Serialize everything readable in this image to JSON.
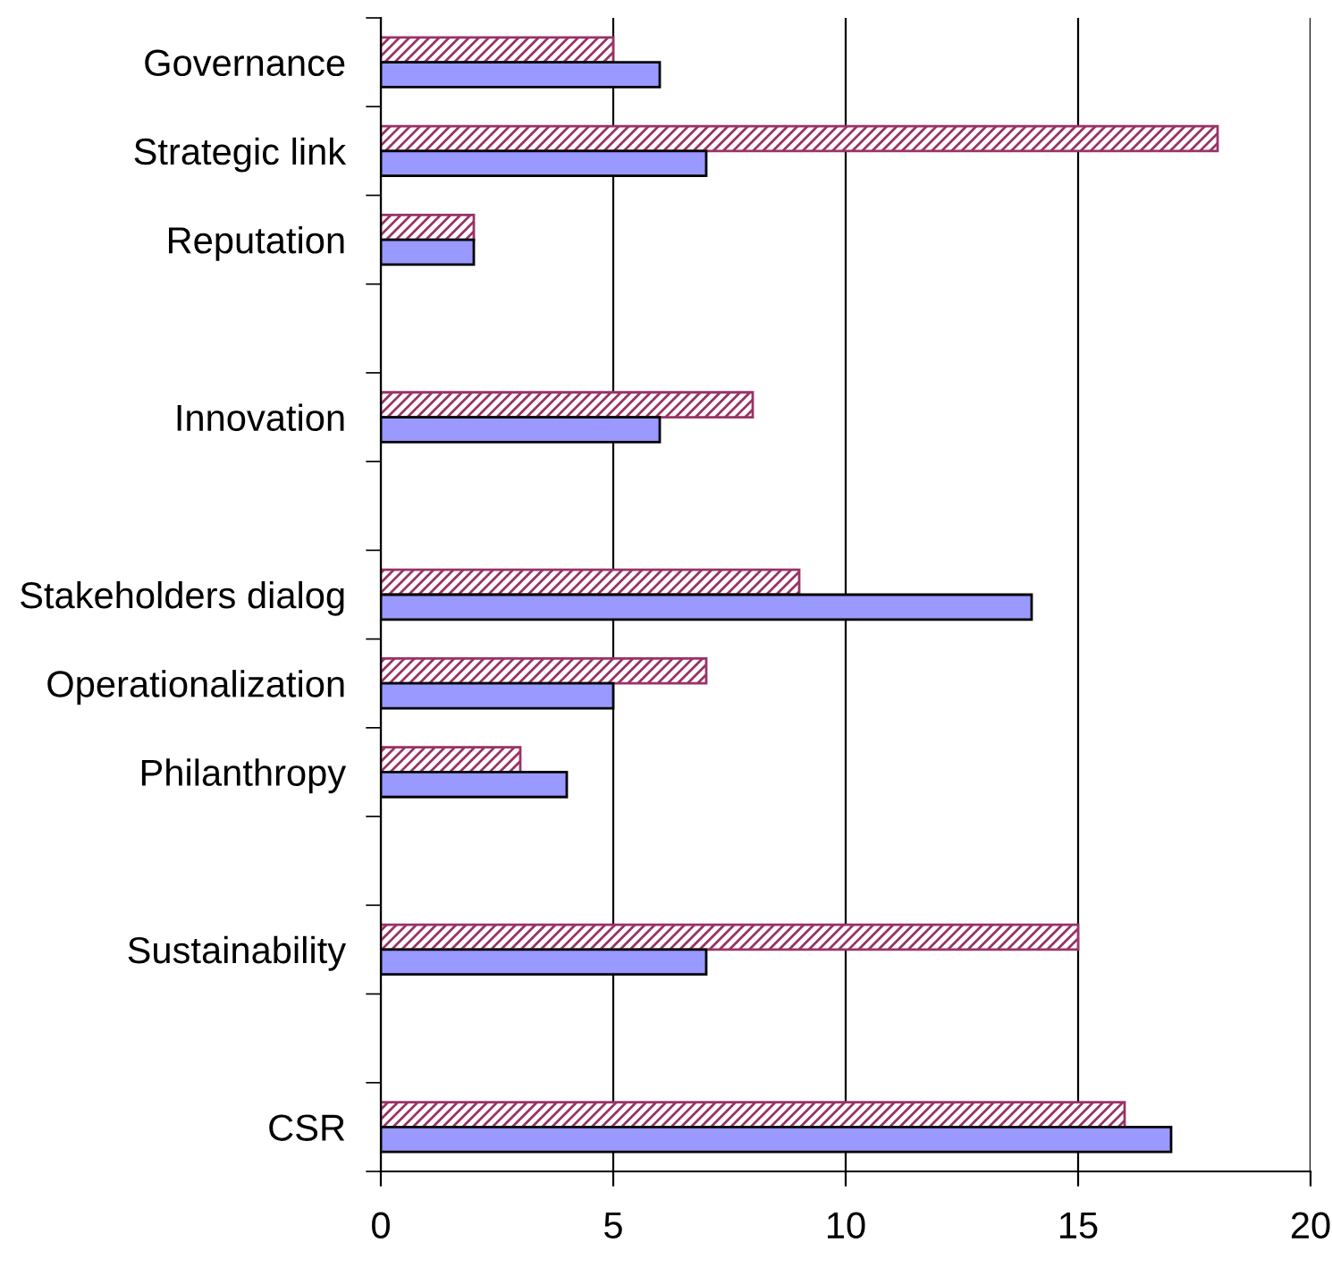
{
  "chart_data": {
    "type": "bar",
    "orientation": "horizontal",
    "categories": [
      "Governance",
      "Strategic link",
      "Reputation",
      null,
      "Innovation",
      null,
      "Stakeholders dialog",
      "Operationalization",
      "Philanthropy",
      null,
      "Sustainability",
      null,
      "CSR"
    ],
    "series": [
      {
        "color": "#993366",
        "values": [
          5,
          18,
          2,
          null,
          8,
          null,
          9,
          7,
          3,
          null,
          15,
          null,
          16
        ]
      },
      {
        "color": "#9999ff",
        "values": [
          6,
          7,
          2,
          null,
          6,
          null,
          14,
          5,
          4,
          null,
          7,
          null,
          17
        ]
      }
    ],
    "xlim": [
      0,
      20
    ],
    "xticks": [
      0,
      5,
      10,
      15,
      20
    ],
    "grid": "x",
    "legend": false
  }
}
